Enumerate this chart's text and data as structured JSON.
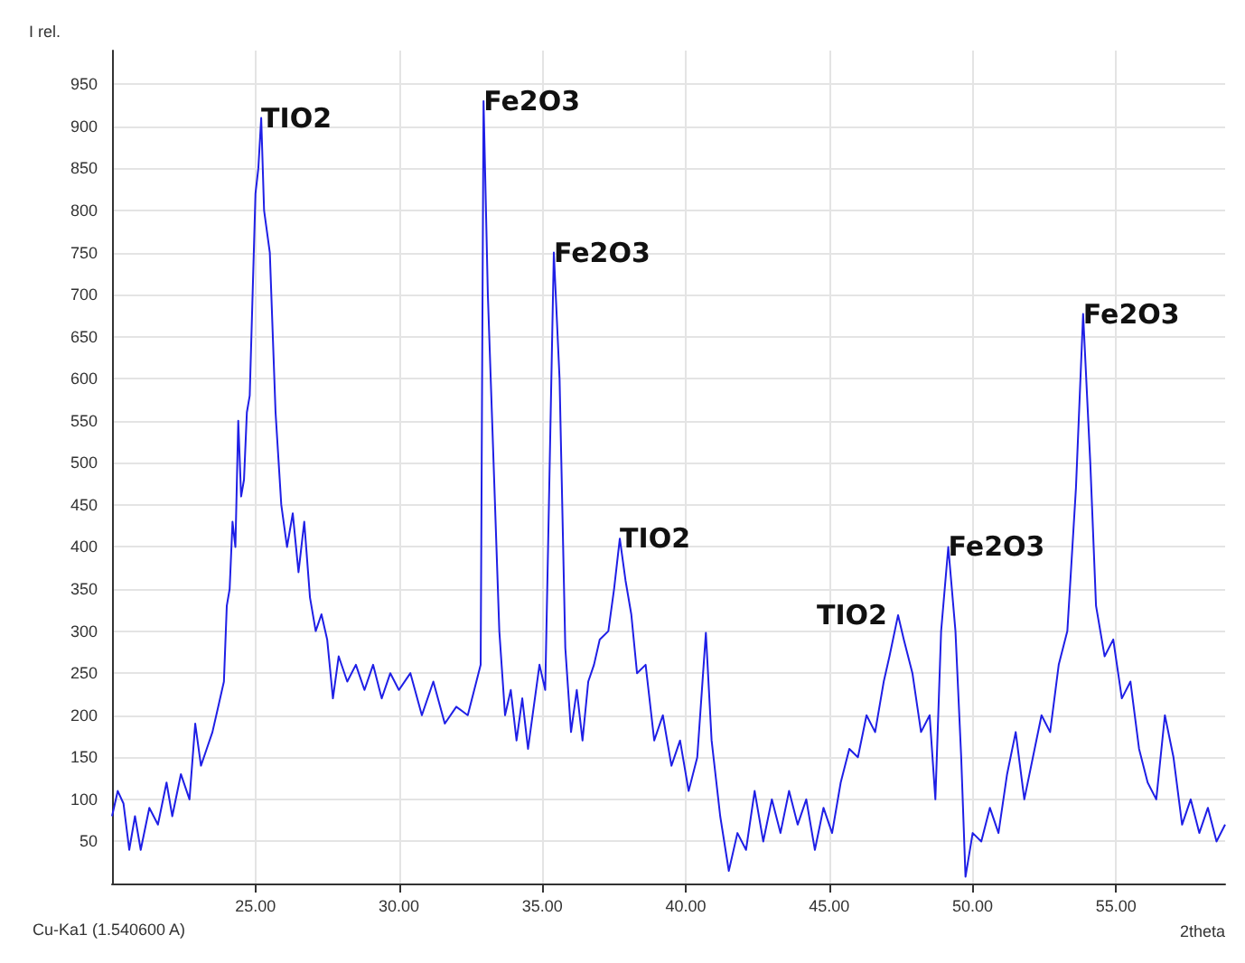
{
  "chart_data": {
    "type": "line",
    "xlabel": "2theta",
    "ylabel": "I rel.",
    "xlim": [
      20,
      58.8
    ],
    "xticks": [
      {
        "value": 25,
        "label": "25.00"
      },
      {
        "value": 30,
        "label": "30.00"
      },
      {
        "value": 35,
        "label": "35.00"
      },
      {
        "value": 40,
        "label": "40.00"
      },
      {
        "value": 45,
        "label": "45.00"
      },
      {
        "value": 50,
        "label": "50.00"
      },
      {
        "value": 55,
        "label": "55.00"
      }
    ],
    "ylim": [
      0,
      990
    ],
    "yticks": [
      50,
      100,
      150,
      200,
      250,
      300,
      350,
      400,
      450,
      500,
      550,
      600,
      650,
      700,
      750,
      800,
      850,
      900,
      950
    ],
    "grid": true,
    "marker": "none",
    "line_style": "solid",
    "series": [
      {
        "color": "#1f1fe6",
        "x": [
          20.0,
          20.2,
          20.4,
          20.6,
          20.8,
          21.0,
          21.3,
          21.6,
          21.9,
          22.1,
          22.4,
          22.7,
          22.9,
          23.1,
          23.3,
          23.5,
          23.7,
          23.9,
          24.0,
          24.1,
          24.2,
          24.3,
          24.4,
          24.5,
          24.6,
          24.7,
          24.8,
          24.9,
          25.0,
          25.1,
          25.2,
          25.3,
          25.5,
          25.7,
          25.9,
          26.1,
          26.3,
          26.5,
          26.7,
          26.9,
          27.1,
          27.3,
          27.5,
          27.7,
          27.9,
          28.2,
          28.5,
          28.8,
          29.1,
          29.4,
          29.7,
          30.0,
          30.4,
          30.8,
          31.2,
          31.6,
          32.0,
          32.4,
          32.7,
          32.85,
          32.95,
          33.1,
          33.3,
          33.5,
          33.7,
          33.9,
          34.1,
          34.3,
          34.5,
          34.7,
          34.9,
          35.1,
          35.2,
          35.4,
          35.6,
          35.8,
          36.0,
          36.2,
          36.4,
          36.6,
          36.8,
          37.0,
          37.3,
          37.5,
          37.7,
          37.9,
          38.1,
          38.3,
          38.6,
          38.9,
          39.2,
          39.5,
          39.8,
          40.1,
          40.4,
          40.7,
          40.9,
          41.2,
          41.5,
          41.8,
          42.1,
          42.4,
          42.7,
          43.0,
          43.3,
          43.6,
          43.9,
          44.2,
          44.5,
          44.8,
          45.1,
          45.4,
          45.7,
          46.0,
          46.3,
          46.6,
          46.9,
          47.1,
          47.4,
          47.6,
          47.9,
          48.2,
          48.5,
          48.7,
          48.9,
          49.15,
          49.4,
          49.6,
          49.75,
          50.0,
          50.3,
          50.6,
          50.9,
          51.2,
          51.5,
          51.8,
          52.1,
          52.4,
          52.7,
          53.0,
          53.3,
          53.6,
          53.85,
          54.1,
          54.3,
          54.6,
          54.9,
          55.2,
          55.5,
          55.8,
          56.1,
          56.4,
          56.7,
          57.0,
          57.3,
          57.6,
          57.9,
          58.2,
          58.5,
          58.8
        ],
        "values": [
          80,
          110,
          95,
          40,
          80,
          40,
          90,
          70,
          120,
          80,
          130,
          100,
          190,
          140,
          160,
          180,
          210,
          240,
          330,
          350,
          430,
          400,
          550,
          460,
          480,
          560,
          580,
          700,
          820,
          850,
          910,
          800,
          750,
          560,
          450,
          400,
          440,
          370,
          430,
          340,
          300,
          320,
          290,
          220,
          270,
          240,
          260,
          230,
          260,
          220,
          250,
          230,
          250,
          200,
          240,
          190,
          210,
          200,
          240,
          260,
          930,
          700,
          500,
          300,
          200,
          230,
          170,
          220,
          160,
          210,
          260,
          230,
          400,
          750,
          600,
          280,
          180,
          230,
          170,
          240,
          260,
          290,
          300,
          350,
          410,
          360,
          320,
          250,
          260,
          170,
          200,
          140,
          170,
          110,
          150,
          298,
          170,
          80,
          15,
          60,
          40,
          110,
          50,
          100,
          60,
          110,
          70,
          100,
          40,
          90,
          60,
          120,
          160,
          150,
          200,
          180,
          240,
          270,
          319,
          290,
          250,
          180,
          200,
          100,
          300,
          400,
          300,
          150,
          8,
          60,
          50,
          90,
          60,
          130,
          180,
          100,
          150,
          200,
          180,
          260,
          300,
          470,
          677,
          500,
          330,
          270,
          290,
          220,
          240,
          160,
          120,
          100,
          200,
          150,
          70,
          100,
          60,
          90,
          50,
          70
        ]
      }
    ],
    "annotations": [
      {
        "text": "TIO2",
        "x": 25.2,
        "y": 910
      },
      {
        "text": "Fe2O3",
        "x": 32.95,
        "y": 930
      },
      {
        "text": "Fe2O3",
        "x": 35.4,
        "y": 750
      },
      {
        "text": "TIO2",
        "x": 37.7,
        "y": 410
      },
      {
        "text": "TIO2",
        "x": 47.4,
        "y": 319
      },
      {
        "text": "Fe2O3",
        "x": 49.15,
        "y": 400
      },
      {
        "text": "Fe2O3",
        "x": 53.85,
        "y": 677
      },
      "Cu-Ka1 (1.540600 A)"
    ]
  }
}
